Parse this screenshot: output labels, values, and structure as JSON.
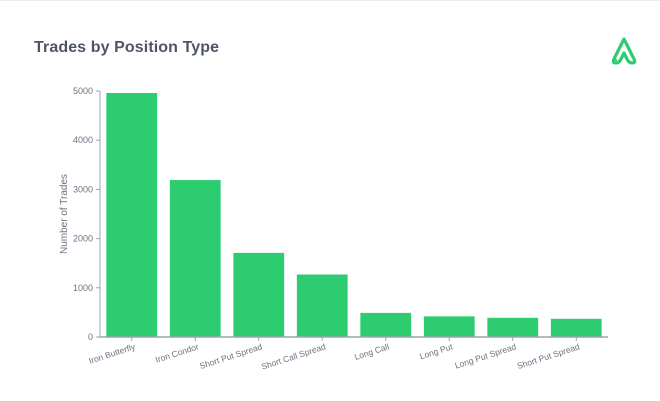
{
  "header": {
    "title": "Trades by Position Type",
    "logo_icon": "abstract-a-logo-icon"
  },
  "colors": {
    "bar": "#2ecc71",
    "title": "#4d5566",
    "axis": "#9ca3af",
    "logo": "#2ecc71"
  },
  "chart_data": {
    "type": "bar",
    "title": "Trades by Position Type",
    "xlabel": "",
    "ylabel": "Number of Trades",
    "ylim": [
      0,
      5000
    ],
    "yticks": [
      0,
      1000,
      2000,
      3000,
      4000,
      5000
    ],
    "grid": false,
    "categories": [
      "Iron Butterfly",
      "Iron Condor",
      "Short Put Spread",
      "Short Call Spread",
      "Long Call",
      "Long Put",
      "Long Put Spread",
      "Short Put Spread"
    ],
    "values": [
      4960,
      3190,
      1710,
      1270,
      490,
      420,
      390,
      370
    ]
  }
}
